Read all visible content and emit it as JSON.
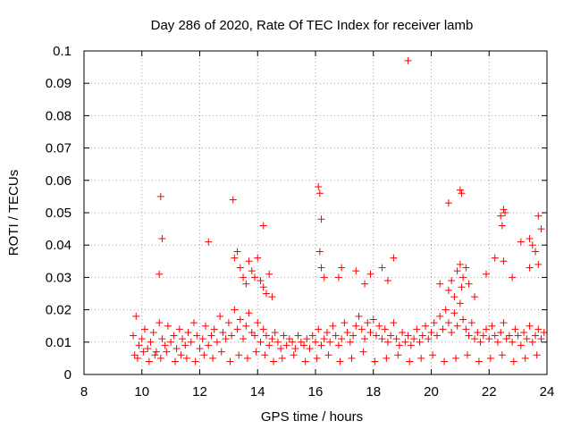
{
  "chart_data": {
    "type": "scatter",
    "title": "Day 286 of 2020, Rate Of TEC Index for receiver lamb",
    "xlabel": "GPS time / hours",
    "ylabel": "ROTI / TECUs",
    "xlim": [
      8,
      24
    ],
    "ylim": [
      0,
      0.1
    ],
    "xticks": [
      {
        "value": 8,
        "label": "8"
      },
      {
        "value": 10,
        "label": "10"
      },
      {
        "value": 12,
        "label": "12"
      },
      {
        "value": 14,
        "label": "14"
      },
      {
        "value": 16,
        "label": "16"
      },
      {
        "value": 18,
        "label": "18"
      },
      {
        "value": 20,
        "label": "20"
      },
      {
        "value": 22,
        "label": "22"
      },
      {
        "value": 24,
        "label": "24"
      }
    ],
    "yticks": [
      {
        "value": 0,
        "label": "0"
      },
      {
        "value": 0.01,
        "label": "0.01"
      },
      {
        "value": 0.02,
        "label": "0.02"
      },
      {
        "value": 0.03,
        "label": "0.03"
      },
      {
        "value": 0.04,
        "label": "0.04"
      },
      {
        "value": 0.05,
        "label": "0.05"
      },
      {
        "value": 0.06,
        "label": "0.06"
      },
      {
        "value": 0.07,
        "label": "0.07"
      },
      {
        "value": 0.08,
        "label": "0.08"
      },
      {
        "value": 0.09,
        "label": "0.09"
      },
      {
        "value": 0.1,
        "label": "0.1"
      }
    ],
    "grid": true,
    "marker": "+",
    "color": "#ff0000",
    "series": [
      {
        "name": "ROTI",
        "x": [
          9.7,
          9.8,
          9.9,
          10.0,
          10.1,
          10.2,
          10.3,
          10.4,
          10.5,
          10.6,
          10.7,
          10.8,
          10.9,
          11.0,
          11.1,
          11.2,
          11.3,
          11.4,
          11.5,
          11.6,
          11.7,
          11.8,
          11.9,
          12.0,
          12.1,
          12.2,
          12.3,
          12.4,
          12.5,
          12.6,
          12.7,
          12.8,
          12.9,
          13.0,
          13.1,
          13.2,
          13.3,
          13.4,
          13.5,
          13.6,
          13.7,
          13.8,
          13.9,
          14.0,
          14.1,
          14.2,
          14.3,
          14.4,
          14.5,
          14.6,
          14.7,
          14.8,
          14.9,
          15.0,
          15.1,
          15.2,
          15.3,
          15.4,
          15.5,
          15.6,
          15.7,
          15.8,
          15.9,
          16.0,
          16.1,
          16.2,
          16.3,
          16.4,
          16.5,
          16.6,
          16.7,
          16.8,
          16.9,
          17.0,
          17.1,
          17.2,
          17.3,
          17.4,
          17.5,
          17.6,
          17.7,
          17.8,
          17.9,
          18.0,
          18.1,
          18.2,
          18.3,
          18.4,
          18.5,
          18.6,
          18.7,
          18.8,
          18.9,
          19.0,
          19.1,
          19.2,
          19.3,
          19.4,
          19.5,
          19.6,
          19.7,
          19.8,
          19.9,
          20.0,
          20.1,
          20.2,
          20.3,
          20.4,
          20.5,
          20.6,
          20.7,
          20.8,
          20.9,
          21.0,
          21.1,
          21.2,
          21.3,
          21.4,
          21.5,
          21.6,
          21.7,
          21.8,
          21.9,
          22.0,
          22.1,
          22.2,
          22.3,
          22.4,
          22.5,
          22.6,
          22.7,
          22.8,
          22.9,
          23.0,
          23.1,
          23.2,
          23.3,
          23.4,
          23.5,
          23.6,
          23.7,
          23.8,
          23.9,
          9.75,
          9.85,
          10.05,
          10.25,
          10.45,
          10.65,
          10.85,
          11.15,
          11.35,
          11.55,
          11.85,
          12.15,
          12.45,
          12.75,
          13.05,
          13.35,
          13.65,
          13.95,
          14.25,
          14.55,
          14.85,
          15.25,
          15.65,
          16.05,
          16.45,
          16.85,
          17.25,
          17.65,
          18.05,
          18.45,
          18.85,
          19.25,
          19.65,
          20.05,
          20.45,
          20.85,
          21.25,
          21.65,
          22.05,
          22.45,
          22.85,
          23.25,
          23.65,
          10.6,
          10.7,
          12.3,
          13.2,
          13.3,
          13.4,
          13.5,
          13.6,
          13.7,
          13.8,
          13.9,
          14.0,
          14.1,
          14.2,
          14.3,
          14.4,
          14.5,
          16.15,
          16.2,
          16.3,
          16.8,
          16.9,
          17.4,
          17.7,
          17.9,
          18.3,
          18.5,
          18.7,
          20.3,
          20.6,
          20.7,
          20.8,
          20.9,
          21.0,
          21.05,
          21.1,
          21.2,
          21.3,
          21.5,
          21.9,
          22.2,
          22.4,
          22.45,
          22.5,
          22.8,
          23.1,
          23.4,
          23.5,
          23.6,
          23.7,
          23.8,
          10.65,
          13.15,
          14.2,
          16.1,
          16.15,
          16.2,
          19.2,
          20.6,
          21.0,
          21.05,
          22.5,
          22.55,
          23.4,
          23.7
        ],
        "y": [
          0.012,
          0.018,
          0.009,
          0.011,
          0.014,
          0.008,
          0.01,
          0.013,
          0.007,
          0.016,
          0.011,
          0.009,
          0.015,
          0.01,
          0.012,
          0.008,
          0.014,
          0.011,
          0.009,
          0.013,
          0.01,
          0.016,
          0.012,
          0.008,
          0.011,
          0.015,
          0.009,
          0.012,
          0.014,
          0.01,
          0.018,
          0.013,
          0.011,
          0.016,
          0.012,
          0.02,
          0.014,
          0.017,
          0.011,
          0.015,
          0.019,
          0.013,
          0.012,
          0.016,
          0.01,
          0.014,
          0.012,
          0.009,
          0.011,
          0.013,
          0.01,
          0.008,
          0.012,
          0.009,
          0.011,
          0.01,
          0.008,
          0.012,
          0.01,
          0.009,
          0.011,
          0.008,
          0.012,
          0.01,
          0.014,
          0.009,
          0.011,
          0.013,
          0.01,
          0.015,
          0.012,
          0.009,
          0.011,
          0.016,
          0.013,
          0.01,
          0.012,
          0.015,
          0.018,
          0.014,
          0.011,
          0.016,
          0.013,
          0.017,
          0.012,
          0.015,
          0.011,
          0.014,
          0.01,
          0.012,
          0.016,
          0.011,
          0.009,
          0.013,
          0.01,
          0.012,
          0.009,
          0.011,
          0.014,
          0.01,
          0.012,
          0.015,
          0.011,
          0.013,
          0.016,
          0.012,
          0.018,
          0.014,
          0.02,
          0.016,
          0.013,
          0.019,
          0.015,
          0.022,
          0.017,
          0.014,
          0.012,
          0.016,
          0.011,
          0.013,
          0.01,
          0.012,
          0.014,
          0.011,
          0.015,
          0.012,
          0.01,
          0.013,
          0.016,
          0.011,
          0.012,
          0.01,
          0.014,
          0.012,
          0.009,
          0.013,
          0.011,
          0.015,
          0.01,
          0.012,
          0.014,
          0.011,
          0.013,
          0.006,
          0.005,
          0.007,
          0.004,
          0.006,
          0.005,
          0.007,
          0.004,
          0.006,
          0.005,
          0.004,
          0.006,
          0.005,
          0.007,
          0.004,
          0.006,
          0.005,
          0.007,
          0.006,
          0.004,
          0.005,
          0.006,
          0.004,
          0.005,
          0.006,
          0.004,
          0.005,
          0.007,
          0.004,
          0.005,
          0.006,
          0.004,
          0.005,
          0.006,
          0.004,
          0.005,
          0.006,
          0.004,
          0.005,
          0.006,
          0.004,
          0.005,
          0.006,
          0.031,
          0.042,
          0.041,
          0.036,
          0.038,
          0.033,
          0.03,
          0.028,
          0.035,
          0.032,
          0.03,
          0.036,
          0.029,
          0.027,
          0.025,
          0.031,
          0.024,
          0.038,
          0.033,
          0.03,
          0.03,
          0.033,
          0.032,
          0.028,
          0.031,
          0.033,
          0.029,
          0.036,
          0.028,
          0.026,
          0.029,
          0.024,
          0.032,
          0.034,
          0.027,
          0.03,
          0.033,
          0.028,
          0.024,
          0.031,
          0.036,
          0.049,
          0.046,
          0.035,
          0.03,
          0.041,
          0.033,
          0.04,
          0.038,
          0.034,
          0.045,
          0.055,
          0.054,
          0.046,
          0.058,
          0.056,
          0.048,
          0.097,
          0.053,
          0.057,
          0.056,
          0.051,
          0.05,
          0.042,
          0.049
        ]
      }
    ]
  }
}
